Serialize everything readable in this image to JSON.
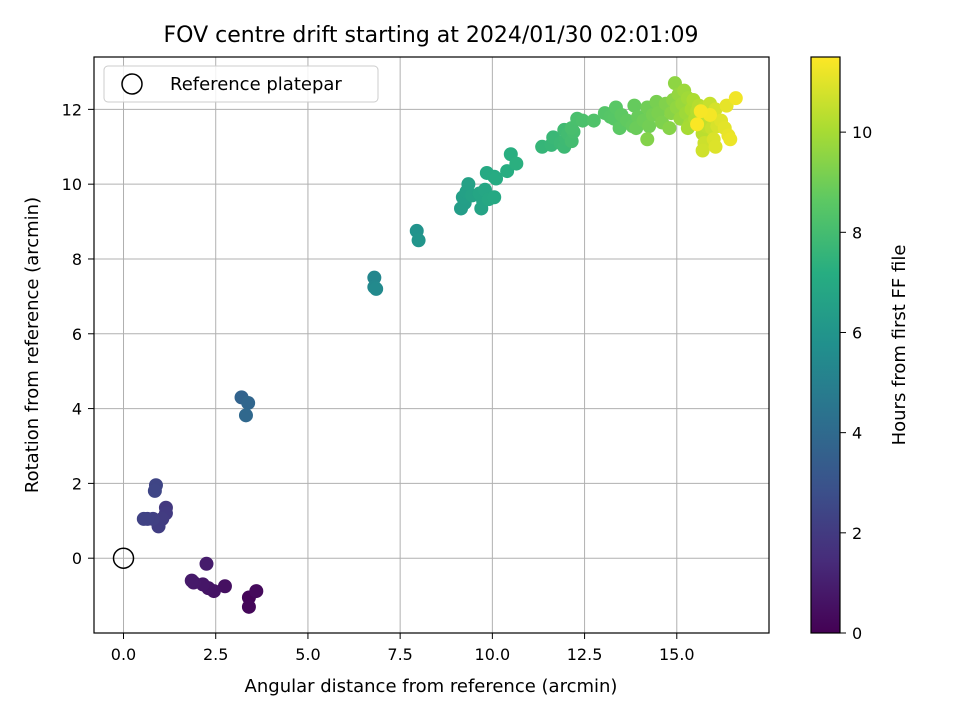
{
  "chart_data": {
    "type": "scatter",
    "title": "FOV centre drift starting at 2024/01/30 02:01:09",
    "xlabel": "Angular distance from reference (arcmin)",
    "ylabel": "Rotation from reference (arcmin)",
    "xlim": [
      -0.8,
      17.5
    ],
    "ylim": [
      -2.0,
      13.4
    ],
    "x_ticks": [
      0.0,
      2.5,
      5.0,
      7.5,
      10.0,
      12.5,
      15.0
    ],
    "x_tick_labels": [
      "0.0",
      "2.5",
      "5.0",
      "7.5",
      "10.0",
      "12.5",
      "15.0"
    ],
    "y_ticks": [
      0,
      2,
      4,
      6,
      8,
      10,
      12
    ],
    "y_tick_labels": [
      "0",
      "2",
      "4",
      "6",
      "8",
      "10",
      "12"
    ],
    "grid": true,
    "legend": {
      "position": "top-left",
      "label": "Reference platepar",
      "marker": "hollow-circle"
    },
    "reference_point": {
      "x": 0.0,
      "y": 0.0
    },
    "colorbar": {
      "label": "Hours from first FF file",
      "colormap": "viridis",
      "range": [
        0,
        11.5
      ],
      "ticks": [
        0,
        2,
        4,
        6,
        8,
        10
      ],
      "tick_labels": [
        "0",
        "2",
        "4",
        "6",
        "8",
        "10"
      ]
    },
    "points": [
      {
        "x": 3.4,
        "y": -1.05,
        "c": 0.15
      },
      {
        "x": 3.4,
        "y": -1.3,
        "c": 0.2
      },
      {
        "x": 3.6,
        "y": -0.88,
        "c": 0.3
      },
      {
        "x": 2.75,
        "y": -0.75,
        "c": 0.5
      },
      {
        "x": 2.45,
        "y": -0.88,
        "c": 0.6
      },
      {
        "x": 2.3,
        "y": -0.8,
        "c": 0.65
      },
      {
        "x": 2.15,
        "y": -0.7,
        "c": 0.7
      },
      {
        "x": 1.9,
        "y": -0.65,
        "c": 0.8
      },
      {
        "x": 1.85,
        "y": -0.6,
        "c": 0.85
      },
      {
        "x": 2.25,
        "y": -0.15,
        "c": 0.9
      },
      {
        "x": 1.15,
        "y": 1.35,
        "c": 1.9
      },
      {
        "x": 1.15,
        "y": 1.2,
        "c": 2.0
      },
      {
        "x": 1.05,
        "y": 1.05,
        "c": 2.05
      },
      {
        "x": 0.95,
        "y": 0.85,
        "c": 2.1
      },
      {
        "x": 0.8,
        "y": 1.05,
        "c": 2.2
      },
      {
        "x": 0.65,
        "y": 1.05,
        "c": 2.25
      },
      {
        "x": 0.55,
        "y": 1.05,
        "c": 2.3
      },
      {
        "x": 0.88,
        "y": 1.95,
        "c": 2.4
      },
      {
        "x": 0.85,
        "y": 1.8,
        "c": 2.45
      },
      {
        "x": 3.2,
        "y": 4.3,
        "c": 3.7
      },
      {
        "x": 3.38,
        "y": 4.15,
        "c": 3.8
      },
      {
        "x": 3.32,
        "y": 3.82,
        "c": 3.9
      },
      {
        "x": 6.8,
        "y": 7.5,
        "c": 5.3
      },
      {
        "x": 6.8,
        "y": 7.25,
        "c": 5.4
      },
      {
        "x": 6.85,
        "y": 7.2,
        "c": 5.45
      },
      {
        "x": 7.95,
        "y": 8.75,
        "c": 5.9
      },
      {
        "x": 8.0,
        "y": 8.5,
        "c": 6.0
      },
      {
        "x": 9.15,
        "y": 9.35,
        "c": 6.4
      },
      {
        "x": 9.25,
        "y": 9.5,
        "c": 6.45
      },
      {
        "x": 9.2,
        "y": 9.65,
        "c": 6.5
      },
      {
        "x": 9.3,
        "y": 9.8,
        "c": 6.55
      },
      {
        "x": 9.35,
        "y": 10.0,
        "c": 6.6
      },
      {
        "x": 9.45,
        "y": 9.7,
        "c": 6.65
      },
      {
        "x": 9.7,
        "y": 9.35,
        "c": 6.7
      },
      {
        "x": 9.75,
        "y": 9.55,
        "c": 6.75
      },
      {
        "x": 9.65,
        "y": 9.75,
        "c": 6.8
      },
      {
        "x": 9.8,
        "y": 9.85,
        "c": 6.85
      },
      {
        "x": 9.9,
        "y": 9.6,
        "c": 6.9
      },
      {
        "x": 10.05,
        "y": 9.65,
        "c": 6.95
      },
      {
        "x": 9.85,
        "y": 10.3,
        "c": 7.0
      },
      {
        "x": 10.05,
        "y": 10.2,
        "c": 7.05
      },
      {
        "x": 10.1,
        "y": 10.15,
        "c": 7.1
      },
      {
        "x": 10.4,
        "y": 10.35,
        "c": 7.2
      },
      {
        "x": 10.5,
        "y": 10.8,
        "c": 7.25
      },
      {
        "x": 10.65,
        "y": 10.55,
        "c": 7.3
      },
      {
        "x": 11.35,
        "y": 11.0,
        "c": 7.6
      },
      {
        "x": 11.6,
        "y": 11.05,
        "c": 7.65
      },
      {
        "x": 11.65,
        "y": 11.25,
        "c": 7.7
      },
      {
        "x": 11.85,
        "y": 11.1,
        "c": 7.75
      },
      {
        "x": 11.95,
        "y": 11.0,
        "c": 7.8
      },
      {
        "x": 12.0,
        "y": 11.2,
        "c": 7.85
      },
      {
        "x": 11.95,
        "y": 11.45,
        "c": 7.9
      },
      {
        "x": 12.05,
        "y": 11.35,
        "c": 7.95
      },
      {
        "x": 12.15,
        "y": 11.15,
        "c": 8.0
      },
      {
        "x": 12.2,
        "y": 11.4,
        "c": 8.05
      },
      {
        "x": 12.15,
        "y": 11.5,
        "c": 8.1
      },
      {
        "x": 12.3,
        "y": 11.75,
        "c": 8.15
      },
      {
        "x": 12.45,
        "y": 11.7,
        "c": 8.2
      },
      {
        "x": 12.75,
        "y": 11.7,
        "c": 8.3
      },
      {
        "x": 13.05,
        "y": 11.9,
        "c": 8.4
      },
      {
        "x": 13.2,
        "y": 11.8,
        "c": 8.45
      },
      {
        "x": 13.3,
        "y": 11.75,
        "c": 8.5
      },
      {
        "x": 13.35,
        "y": 12.05,
        "c": 8.55
      },
      {
        "x": 13.45,
        "y": 11.5,
        "c": 8.6
      },
      {
        "x": 13.5,
        "y": 11.85,
        "c": 8.65
      },
      {
        "x": 13.65,
        "y": 11.7,
        "c": 8.7
      },
      {
        "x": 13.8,
        "y": 11.55,
        "c": 8.75
      },
      {
        "x": 13.85,
        "y": 12.1,
        "c": 8.8
      },
      {
        "x": 13.95,
        "y": 11.8,
        "c": 8.85
      },
      {
        "x": 13.9,
        "y": 11.5,
        "c": 8.9
      },
      {
        "x": 14.1,
        "y": 11.7,
        "c": 8.95
      },
      {
        "x": 14.2,
        "y": 12.05,
        "c": 9.0
      },
      {
        "x": 14.25,
        "y": 11.55,
        "c": 9.05
      },
      {
        "x": 14.35,
        "y": 11.85,
        "c": 9.1
      },
      {
        "x": 14.45,
        "y": 12.2,
        "c": 9.15
      },
      {
        "x": 14.5,
        "y": 11.9,
        "c": 9.2
      },
      {
        "x": 14.6,
        "y": 11.65,
        "c": 9.25
      },
      {
        "x": 14.7,
        "y": 12.15,
        "c": 9.3
      },
      {
        "x": 14.2,
        "y": 11.2,
        "c": 9.35
      },
      {
        "x": 14.8,
        "y": 11.5,
        "c": 9.4
      },
      {
        "x": 14.85,
        "y": 11.9,
        "c": 9.45
      },
      {
        "x": 14.9,
        "y": 12.25,
        "c": 9.5
      },
      {
        "x": 14.95,
        "y": 12.7,
        "c": 9.55
      },
      {
        "x": 15.0,
        "y": 12.05,
        "c": 9.6
      },
      {
        "x": 15.05,
        "y": 12.4,
        "c": 9.65
      },
      {
        "x": 15.1,
        "y": 11.75,
        "c": 9.7
      },
      {
        "x": 15.15,
        "y": 12.15,
        "c": 9.75
      },
      {
        "x": 15.2,
        "y": 12.5,
        "c": 9.8
      },
      {
        "x": 15.25,
        "y": 11.9,
        "c": 9.85
      },
      {
        "x": 15.3,
        "y": 12.3,
        "c": 9.9
      },
      {
        "x": 15.35,
        "y": 11.6,
        "c": 9.95
      },
      {
        "x": 15.3,
        "y": 11.5,
        "c": 10.0
      },
      {
        "x": 15.4,
        "y": 12.0,
        "c": 10.05
      },
      {
        "x": 15.45,
        "y": 12.25,
        "c": 10.1
      },
      {
        "x": 15.5,
        "y": 11.75,
        "c": 10.15
      },
      {
        "x": 15.55,
        "y": 11.95,
        "c": 10.2
      },
      {
        "x": 15.6,
        "y": 12.1,
        "c": 10.25
      },
      {
        "x": 15.65,
        "y": 11.7,
        "c": 10.3
      },
      {
        "x": 15.7,
        "y": 11.35,
        "c": 10.35
      },
      {
        "x": 15.75,
        "y": 12.05,
        "c": 10.4
      },
      {
        "x": 15.8,
        "y": 11.55,
        "c": 10.45
      },
      {
        "x": 15.85,
        "y": 11.85,
        "c": 10.5
      },
      {
        "x": 15.9,
        "y": 12.15,
        "c": 10.55
      },
      {
        "x": 15.95,
        "y": 11.5,
        "c": 10.6
      },
      {
        "x": 15.75,
        "y": 11.1,
        "c": 10.65
      },
      {
        "x": 15.7,
        "y": 10.9,
        "c": 10.7
      },
      {
        "x": 16.0,
        "y": 11.8,
        "c": 10.75
      },
      {
        "x": 16.05,
        "y": 12.0,
        "c": 10.8
      },
      {
        "x": 16.1,
        "y": 11.55,
        "c": 10.85
      },
      {
        "x": 16.0,
        "y": 11.2,
        "c": 10.9
      },
      {
        "x": 16.05,
        "y": 11.0,
        "c": 10.95
      },
      {
        "x": 16.2,
        "y": 11.7,
        "c": 11.0
      },
      {
        "x": 16.3,
        "y": 11.5,
        "c": 11.05
      },
      {
        "x": 16.35,
        "y": 12.1,
        "c": 11.1
      },
      {
        "x": 16.4,
        "y": 11.3,
        "c": 11.15
      },
      {
        "x": 16.45,
        "y": 11.2,
        "c": 11.2
      },
      {
        "x": 16.6,
        "y": 12.3,
        "c": 11.3
      },
      {
        "x": 15.9,
        "y": 11.85,
        "c": 11.35
      },
      {
        "x": 15.65,
        "y": 11.95,
        "c": 11.4
      },
      {
        "x": 15.55,
        "y": 11.6,
        "c": 11.45
      }
    ]
  }
}
